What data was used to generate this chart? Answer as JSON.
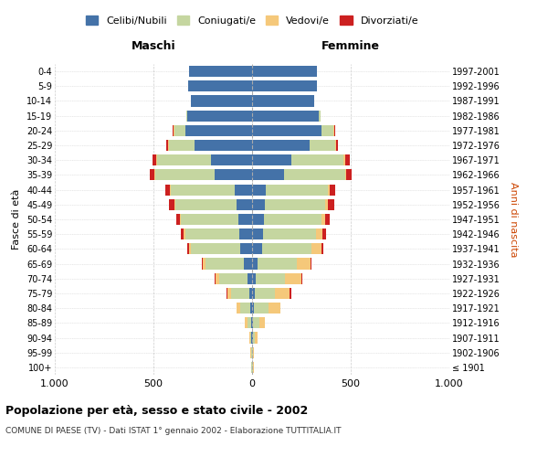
{
  "age_groups": [
    "100+",
    "95-99",
    "90-94",
    "85-89",
    "80-84",
    "75-79",
    "70-74",
    "65-69",
    "60-64",
    "55-59",
    "50-54",
    "45-49",
    "40-44",
    "35-39",
    "30-34",
    "25-29",
    "20-24",
    "15-19",
    "10-14",
    "5-9",
    "0-4"
  ],
  "birth_years": [
    "≤ 1901",
    "1902-1906",
    "1907-1911",
    "1912-1916",
    "1917-1921",
    "1922-1926",
    "1927-1931",
    "1932-1936",
    "1937-1941",
    "1942-1946",
    "1947-1951",
    "1952-1956",
    "1957-1961",
    "1962-1966",
    "1967-1971",
    "1972-1976",
    "1977-1981",
    "1982-1986",
    "1987-1991",
    "1992-1996",
    "1997-2001"
  ],
  "maschi": {
    "celibi": [
      2,
      2,
      3,
      5,
      8,
      15,
      25,
      40,
      60,
      65,
      70,
      80,
      90,
      190,
      210,
      290,
      340,
      330,
      310,
      325,
      320
    ],
    "coniugati": [
      2,
      3,
      8,
      20,
      50,
      90,
      140,
      195,
      250,
      275,
      290,
      310,
      320,
      300,
      270,
      130,
      55,
      5,
      2,
      0,
      0
    ],
    "vedovi": [
      1,
      2,
      5,
      10,
      20,
      20,
      20,
      15,
      10,
      5,
      5,
      5,
      5,
      5,
      5,
      5,
      5,
      0,
      0,
      0,
      0
    ],
    "divorziati": [
      0,
      0,
      0,
      0,
      0,
      5,
      5,
      5,
      10,
      15,
      20,
      25,
      25,
      25,
      20,
      10,
      5,
      0,
      0,
      0,
      0
    ]
  },
  "femmine": {
    "nubili": [
      2,
      2,
      3,
      5,
      8,
      12,
      18,
      30,
      50,
      55,
      60,
      65,
      70,
      160,
      200,
      290,
      350,
      340,
      315,
      330,
      330
    ],
    "coniugate": [
      2,
      4,
      12,
      30,
      75,
      105,
      150,
      195,
      250,
      270,
      290,
      305,
      315,
      310,
      265,
      130,
      60,
      5,
      2,
      0,
      0
    ],
    "vedove": [
      3,
      5,
      15,
      30,
      60,
      75,
      80,
      70,
      50,
      30,
      20,
      15,
      10,
      8,
      5,
      5,
      5,
      0,
      0,
      0,
      0
    ],
    "divorziate": [
      0,
      0,
      0,
      0,
      0,
      5,
      5,
      5,
      10,
      20,
      25,
      30,
      25,
      25,
      25,
      10,
      5,
      0,
      0,
      0,
      0
    ]
  },
  "colors": {
    "celibi": "#4472a8",
    "coniugati": "#c5d6a0",
    "vedovi": "#f5c87a",
    "divorziati": "#cc2020"
  },
  "xlim": 1000,
  "title": "Popolazione per età, sesso e stato civile - 2002",
  "subtitle": "COMUNE DI PAESE (TV) - Dati ISTAT 1° gennaio 2002 - Elaborazione TUTTITALIA.IT",
  "ylabel_left": "Fasce di età",
  "ylabel_right": "Anni di nascita",
  "xlabel_left": "Maschi",
  "xlabel_right": "Femmine",
  "legend_labels": [
    "Celibi/Nubili",
    "Coniugati/e",
    "Vedovi/e",
    "Divorziati/e"
  ],
  "bg_color": "#ffffff",
  "grid_color": "#cccccc"
}
